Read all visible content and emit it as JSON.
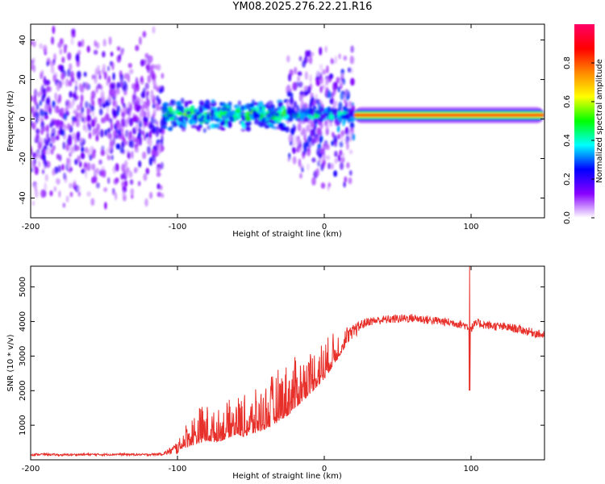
{
  "page_title": "YM08.2025.276.22.21.R16",
  "chart_data": [
    {
      "type": "heatmap",
      "title": "YM08.2025.276.22.21.R16",
      "xlabel": "Height of straight line (km)",
      "ylabel": "Frequency (Hz)",
      "xlim": [
        -200,
        150
      ],
      "ylim": [
        -50,
        48
      ],
      "xticks": [
        -200,
        -100,
        0,
        100
      ],
      "xtick_labels": [
        "-200",
        "-100",
        "0",
        "100"
      ],
      "yticks": [
        -40,
        -20,
        0,
        20,
        40
      ],
      "ytick_labels": [
        "-40",
        "-20",
        "0",
        "20",
        "40"
      ],
      "colorbar": {
        "label": "Normalized spectral amplitude",
        "range": [
          0,
          1
        ],
        "ticks": [
          0.0,
          0.2,
          0.4,
          0.6,
          0.8
        ],
        "tick_labels": [
          "0.0",
          "0.2",
          "0.4",
          "0.6",
          "0.8"
        ],
        "colormap": [
          "#ffffff",
          "#8800ff",
          "#0000ff",
          "#00ffff",
          "#00ff00",
          "#ffff00",
          "#ff8800",
          "#ff0000",
          "#ff0066"
        ]
      },
      "regions": [
        {
          "x": [
            -200,
            -110
          ],
          "freq_spread": 48,
          "freq_center": 0,
          "level": 0.2,
          "description": "broadband noise"
        },
        {
          "x": [
            -110,
            -25
          ],
          "freq_spread": 8,
          "freq_center": 2,
          "level": 0.4,
          "description": "scattered signal"
        },
        {
          "x": [
            -25,
            20
          ],
          "freq_spread": 38,
          "freq_center": 0,
          "level": 0.25,
          "description": "broadband burst"
        },
        {
          "x": [
            -25,
            20
          ],
          "freq_spread": 3,
          "freq_center": 2,
          "level": 0.35,
          "description": "band signal"
        },
        {
          "x": [
            20,
            150
          ],
          "freq_spread": 1.5,
          "freq_center": 2,
          "level": 0.75,
          "description": "narrow band signal"
        }
      ]
    },
    {
      "type": "line",
      "xlabel": "Height of straight line (km)",
      "ylabel": "SNR (10 * v/v)",
      "xlim": [
        -200,
        150
      ],
      "ylim": [
        0,
        5600
      ],
      "xticks": [
        -200,
        -100,
        0,
        100
      ],
      "xtick_labels": [
        "-200",
        "-100",
        "0",
        "100"
      ],
      "yticks": [
        1000,
        2000,
        3000,
        4000,
        5000
      ],
      "ytick_labels": [
        "1000",
        "2000",
        "3000",
        "4000",
        "5000"
      ],
      "color": "#e8302b",
      "series": [
        {
          "name": "SNR",
          "x": [
            -200,
            -190,
            -180,
            -170,
            -160,
            -150,
            -140,
            -130,
            -120,
            -110,
            -105,
            -100,
            -95,
            -90,
            -85,
            -80,
            -75,
            -70,
            -65,
            -60,
            -55,
            -50,
            -45,
            -40,
            -35,
            -30,
            -25,
            -20,
            -15,
            -10,
            -5,
            0,
            5,
            10,
            15,
            20,
            25,
            30,
            40,
            50,
            60,
            70,
            80,
            90,
            95,
            98,
            100,
            102,
            105,
            110,
            120,
            130,
            140,
            150
          ],
          "y": [
            150,
            160,
            140,
            150,
            155,
            150,
            160,
            150,
            150,
            170,
            250,
            350,
            450,
            550,
            650,
            700,
            650,
            700,
            800,
            900,
            850,
            900,
            1000,
            1100,
            1200,
            1400,
            1500,
            1700,
            1900,
            2100,
            2300,
            2500,
            2800,
            3100,
            3400,
            3700,
            3900,
            4000,
            4050,
            4080,
            4100,
            4050,
            4000,
            3950,
            3900,
            3850,
            3800,
            3900,
            3950,
            3900,
            3850,
            3800,
            3700,
            3600
          ],
          "noise": [
            60,
            60,
            60,
            60,
            60,
            60,
            60,
            60,
            60,
            80,
            200,
            400,
            700,
            900,
            1100,
            1100,
            900,
            1000,
            1100,
            1200,
            1200,
            1200,
            1300,
            1400,
            1500,
            1600,
            1600,
            1500,
            1400,
            1300,
            1300,
            1200,
            1000,
            800,
            600,
            450,
            300,
            250,
            250,
            250,
            250,
            250,
            250,
            250,
            250,
            250,
            250,
            250,
            250,
            250,
            250,
            250,
            250,
            250
          ]
        }
      ],
      "annotations": [
        {
          "x": 99,
          "y_min": 2000,
          "y_max": 5600,
          "description": "spike"
        }
      ]
    }
  ]
}
